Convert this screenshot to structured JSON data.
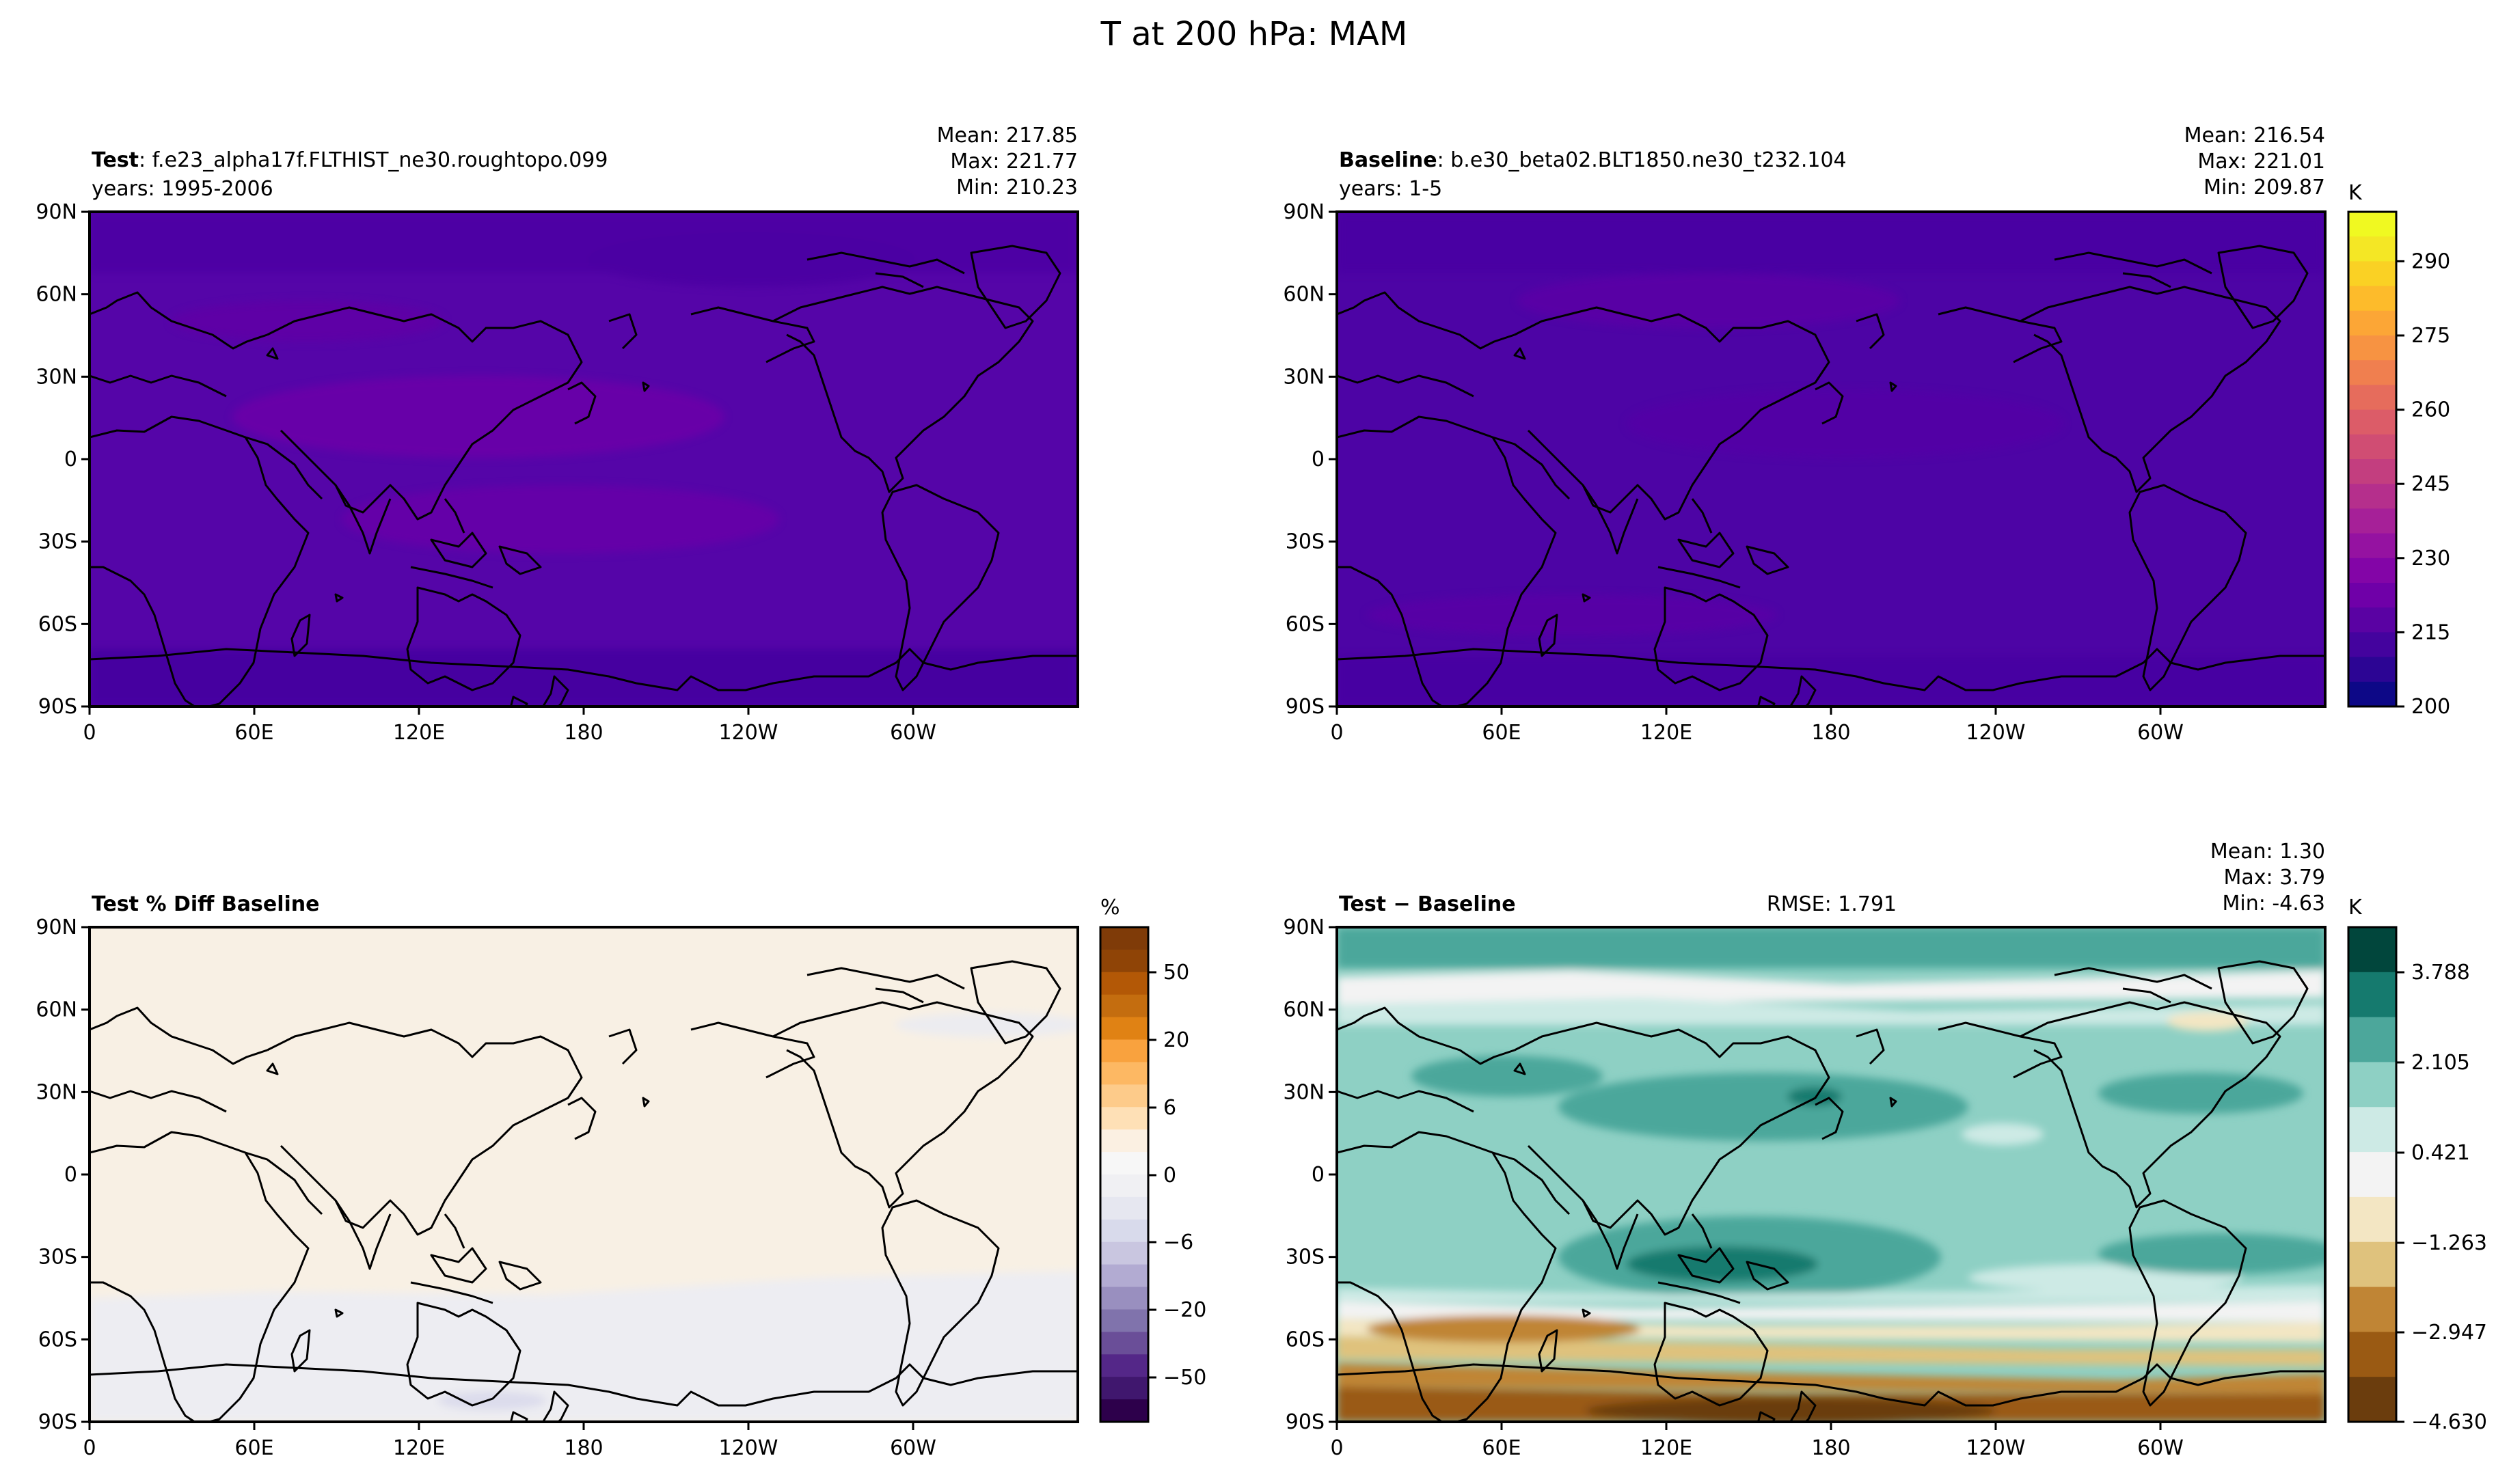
{
  "figure": {
    "title": "T at 200 hPa: MAM"
  },
  "chart_data": [
    {
      "type": "heatmap",
      "id": "test",
      "label_bold": "Test",
      "case": ": f.e23_alpha17f.FLTHIST_ne30.roughtopo.099",
      "years": "years: 1995-2006",
      "stats": [
        "Mean: 217.85",
        "Max: 221.77",
        "Min: 210.23"
      ],
      "xticks": [
        "0",
        "60E",
        "120E",
        "180",
        "120W",
        "60W"
      ],
      "yticks": [
        "90N",
        "60N",
        "30N",
        "0",
        "30S",
        "60S",
        "90S"
      ],
      "base_color": "#5505a8",
      "units": "K"
    },
    {
      "type": "heatmap",
      "id": "baseline",
      "label_bold": "Baseline",
      "case": ": b.e30_beta02.BLT1850.ne30_t232.104",
      "years": "years: 1-5",
      "stats": [
        "Mean: 216.54",
        "Max: 221.01",
        "Min: 209.87"
      ],
      "xticks": [
        "0",
        "60E",
        "120E",
        "180",
        "120W",
        "60W"
      ],
      "yticks": [
        "90N",
        "60N",
        "30N",
        "0",
        "30S",
        "60S",
        "90S"
      ],
      "base_color": "#4d04a5",
      "units": "K",
      "colorbar": {
        "units": "K",
        "ticks": [
          "200",
          "215",
          "230",
          "245",
          "260",
          "275",
          "290"
        ],
        "colors": [
          "#0d0887",
          "#2c0594",
          "#44039e",
          "#5a02a3",
          "#6f00a8",
          "#8305a7",
          "#9512a1",
          "#a62098",
          "#b52f8c",
          "#c33e7f",
          "#d04d73",
          "#dc5c68",
          "#e66c5c",
          "#f07f4f",
          "#f79342",
          "#fca636",
          "#fdbb2b",
          "#fad124",
          "#f4e725",
          "#f0f921"
        ]
      }
    },
    {
      "type": "heatmap",
      "id": "pct-diff",
      "label_bold": "Test % Diff Baseline",
      "xticks": [
        "0",
        "60E",
        "120E",
        "180",
        "120W",
        "60W"
      ],
      "yticks": [
        "90N",
        "60N",
        "30N",
        "0",
        "30S",
        "60S",
        "90S"
      ],
      "base_color": "#f8f0e4",
      "units": "%",
      "colorbar": {
        "units": "%",
        "ticks": [
          "50",
          "20",
          "6",
          "0",
          "−6",
          "−20",
          "−50"
        ],
        "colors": [
          "#2d004b",
          "#40176e",
          "#542788",
          "#6a4e98",
          "#8073ac",
          "#998fbf",
          "#b2abd2",
          "#c9c6e0",
          "#d8daeb",
          "#e6e7f0",
          "#f0f0f3",
          "#f7f7f7",
          "#fbf0e2",
          "#fee0b6",
          "#fdcb8a",
          "#fdb863",
          "#f9a23e",
          "#e08214",
          "#c46d0f",
          "#b35806",
          "#8f4406",
          "#7f3b08"
        ]
      }
    },
    {
      "type": "heatmap",
      "id": "diff",
      "label_bold": "Test − Baseline",
      "rmse": "RMSE: 1.791",
      "stats": [
        "Mean:  1.30",
        "Max:  3.79",
        "Min: -4.63"
      ],
      "xticks": [
        "0",
        "60E",
        "120E",
        "180",
        "120W",
        "60W"
      ],
      "yticks": [
        "90N",
        "60N",
        "30N",
        "0",
        "30S",
        "60S",
        "90S"
      ],
      "base_color": "#8ed0c4",
      "units": "K",
      "colorbar": {
        "units": "K",
        "ticks": [
          "3.788",
          "2.105",
          "0.421",
          "−1.263",
          "−2.947",
          "−4.630"
        ],
        "colors": [
          "#01463c",
          "#157a6e",
          "#4ca79b",
          "#8ed0c4",
          "#cdeae5",
          "#f3f3f3",
          "#f3e6c3",
          "#dfc27d",
          "#c08535",
          "#9a5a13",
          "#6b3d0d"
        ]
      }
    }
  ]
}
